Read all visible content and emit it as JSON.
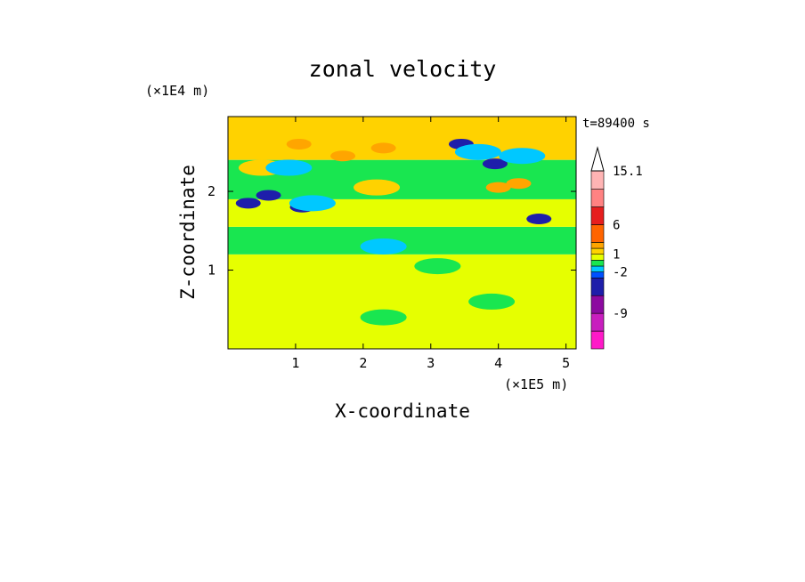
{
  "chart_data": {
    "type": "heatmap",
    "title": "zonal velocity",
    "xlabel": "X-coordinate",
    "ylabel": "Z-coordinate",
    "x_scale_note": "(×1E5 m)",
    "y_scale_note": "(×1E4 m)",
    "time_label": "t=89400 s",
    "xlim": [
      0,
      5.15
    ],
    "ylim": [
      0,
      2.95
    ],
    "x_ticks": [
      1,
      2,
      3,
      4,
      5
    ],
    "y_ticks": [
      1,
      2
    ],
    "colorbar": {
      "levels": [
        -15,
        -12,
        -9,
        -6,
        -3,
        -2,
        -1,
        0,
        1,
        2,
        3,
        6,
        9,
        12,
        15.1
      ],
      "tick_labels": [
        "15.1",
        "6",
        "1",
        "-2",
        "-9"
      ],
      "tick_values": [
        15.1,
        6,
        1,
        -2,
        -9
      ],
      "colors": [
        "#ff19c8",
        "#c81ebe",
        "#8c0aa0",
        "#1e1eaa",
        "#0050ff",
        "#00c8ff",
        "#19e650",
        "#e6ff00",
        "#ffd200",
        "#ffa500",
        "#ff6400",
        "#e61e1e",
        "#ff8282",
        "#ffb4b4"
      ],
      "extend": "max"
    },
    "bands": [
      {
        "z_from": 0.0,
        "z_to": 1.2,
        "value": 0.5
      },
      {
        "z_from": 1.2,
        "z_to": 1.55,
        "value": -0.5
      },
      {
        "z_from": 1.55,
        "z_to": 1.9,
        "value": 0.5
      },
      {
        "z_from": 1.9,
        "z_to": 2.4,
        "value": -0.5
      },
      {
        "z_from": 2.4,
        "z_to": 2.95,
        "value": 1.5
      }
    ],
    "anomalies": [
      {
        "x": 0.3,
        "z": 1.85,
        "value": -3.5
      },
      {
        "x": 0.6,
        "z": 1.95,
        "value": -3.5
      },
      {
        "x": 1.1,
        "z": 1.8,
        "value": -3.5
      },
      {
        "x": 1.25,
        "z": 1.85,
        "value": -1.5
      },
      {
        "x": 1.05,
        "z": 2.6,
        "value": 2.5
      },
      {
        "x": 0.5,
        "z": 2.3,
        "value": 1.5
      },
      {
        "x": 0.9,
        "z": 2.3,
        "value": -1.5
      },
      {
        "x": 1.7,
        "z": 2.45,
        "value": 2.5
      },
      {
        "x": 2.2,
        "z": 2.05,
        "value": 1.5
      },
      {
        "x": 3.45,
        "z": 2.6,
        "value": -3.5
      },
      {
        "x": 3.95,
        "z": 2.35,
        "value": -3.5
      },
      {
        "x": 3.7,
        "z": 2.5,
        "value": -1.5
      },
      {
        "x": 4.35,
        "z": 2.45,
        "value": -1.5
      },
      {
        "x": 4.6,
        "z": 1.65,
        "value": -3.5
      },
      {
        "x": 4.0,
        "z": 2.05,
        "value": 2.5
      },
      {
        "x": 4.3,
        "z": 2.1,
        "value": 2.5
      },
      {
        "x": 2.3,
        "z": 2.55,
        "value": 2.5
      },
      {
        "x": 4.8,
        "z": 2.75,
        "value": 1.5
      },
      {
        "x": 2.3,
        "z": 1.3,
        "value": -1.5
      },
      {
        "x": 3.1,
        "z": 1.05,
        "value": -0.5
      },
      {
        "x": 2.3,
        "z": 0.4,
        "value": -0.5
      },
      {
        "x": 3.9,
        "z": 0.6,
        "value": -0.5
      }
    ]
  }
}
